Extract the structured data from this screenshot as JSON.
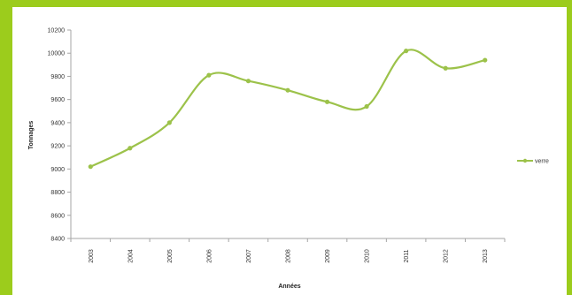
{
  "colors": {
    "frame": "#9ccc1c",
    "series": "#9cc24a",
    "axis": "#a6a6a6"
  },
  "chart_data": {
    "type": "line",
    "title": "",
    "xlabel": "Années",
    "ylabel": "Tonnages",
    "categories": [
      "2003",
      "2004",
      "2005",
      "2006",
      "2007",
      "2008",
      "2009",
      "2010",
      "2011",
      "2012",
      "2013"
    ],
    "series": [
      {
        "name": "verre",
        "values": [
          9020,
          9180,
          9400,
          9810,
          9760,
          9680,
          9580,
          9540,
          10020,
          9870,
          9940
        ]
      }
    ],
    "ylim": [
      8400,
      10200
    ],
    "yticks": [
      "8400",
      "8600",
      "8800",
      "9000",
      "9200",
      "9400",
      "9600",
      "9800",
      "10000",
      "10200"
    ],
    "grid": false,
    "legend": "right",
    "smooth": true
  }
}
